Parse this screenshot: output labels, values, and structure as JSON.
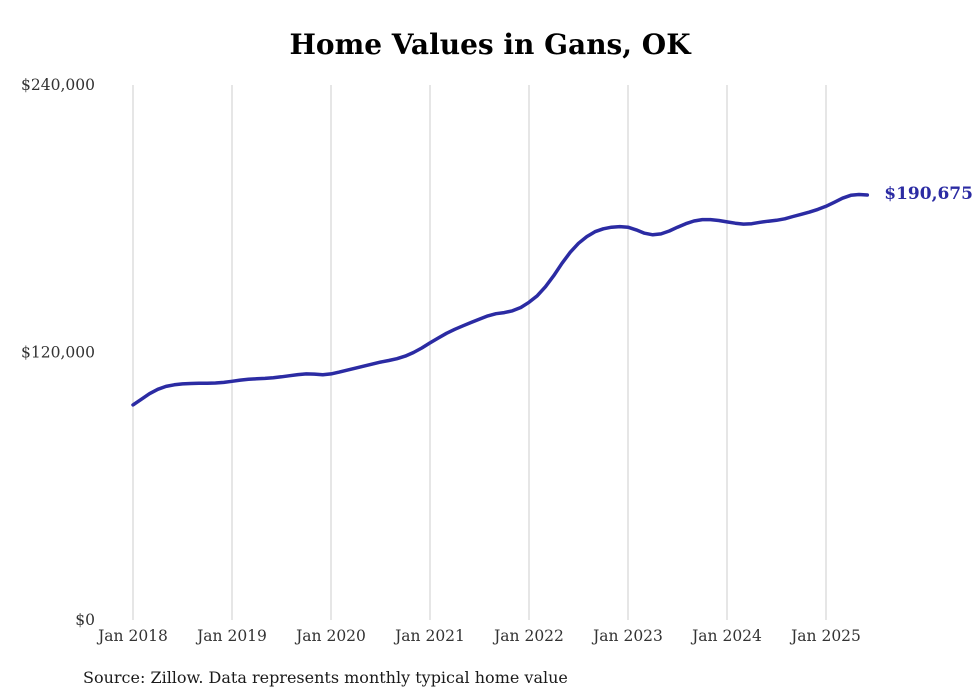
{
  "title": "Home Values in Gans, OK",
  "end_label": "$190,675",
  "source": "Source: Zillow. Data represents monthly typical home value",
  "colors": {
    "line": "#2b2ba3",
    "end_label": "#2b2ba3",
    "grid": "#cccccc",
    "axis_text": "#333333"
  },
  "chart_data": {
    "type": "line",
    "title": "Home Values in Gans, OK",
    "x_start": "2018-01",
    "x_end": "2025-06",
    "x_tick_labels": [
      "Jan 2018",
      "Jan 2019",
      "Jan 2020",
      "Jan 2021",
      "Jan 2022",
      "Jan 2023",
      "Jan 2024",
      "Jan 2025"
    ],
    "y_ticks": [
      0,
      120000,
      240000
    ],
    "y_tick_labels": [
      "$0",
      "$120,000",
      "$240,000"
    ],
    "ylim": [
      0,
      240000
    ],
    "grid": "vertical-only",
    "legend": "none",
    "last_value": 190675,
    "last_value_label": "$190,675",
    "series": [
      {
        "name": "Monthly typical home value",
        "values": [
          96500,
          99000,
          101500,
          103500,
          104800,
          105500,
          105900,
          106100,
          106200,
          106200,
          106300,
          106600,
          107100,
          107600,
          108000,
          108200,
          108400,
          108700,
          109100,
          109600,
          110100,
          110400,
          110300,
          110000,
          110400,
          111200,
          112100,
          113000,
          113900,
          114800,
          115700,
          116400,
          117200,
          118400,
          120000,
          122000,
          124300,
          126500,
          128600,
          130400,
          132000,
          133500,
          135000,
          136400,
          137400,
          137900,
          138700,
          140200,
          142500,
          145500,
          149500,
          154500,
          160000,
          165000,
          169000,
          172000,
          174200,
          175500,
          176200,
          176500,
          176200,
          175000,
          173500,
          172800,
          173200,
          174500,
          176200,
          177800,
          179000,
          179600,
          179600,
          179200,
          178600,
          178000,
          177600,
          177800,
          178400,
          178900,
          179300,
          180000,
          181000,
          182000,
          183000,
          184200,
          185600,
          187400,
          189200,
          190500,
          190900,
          190675
        ]
      }
    ]
  }
}
